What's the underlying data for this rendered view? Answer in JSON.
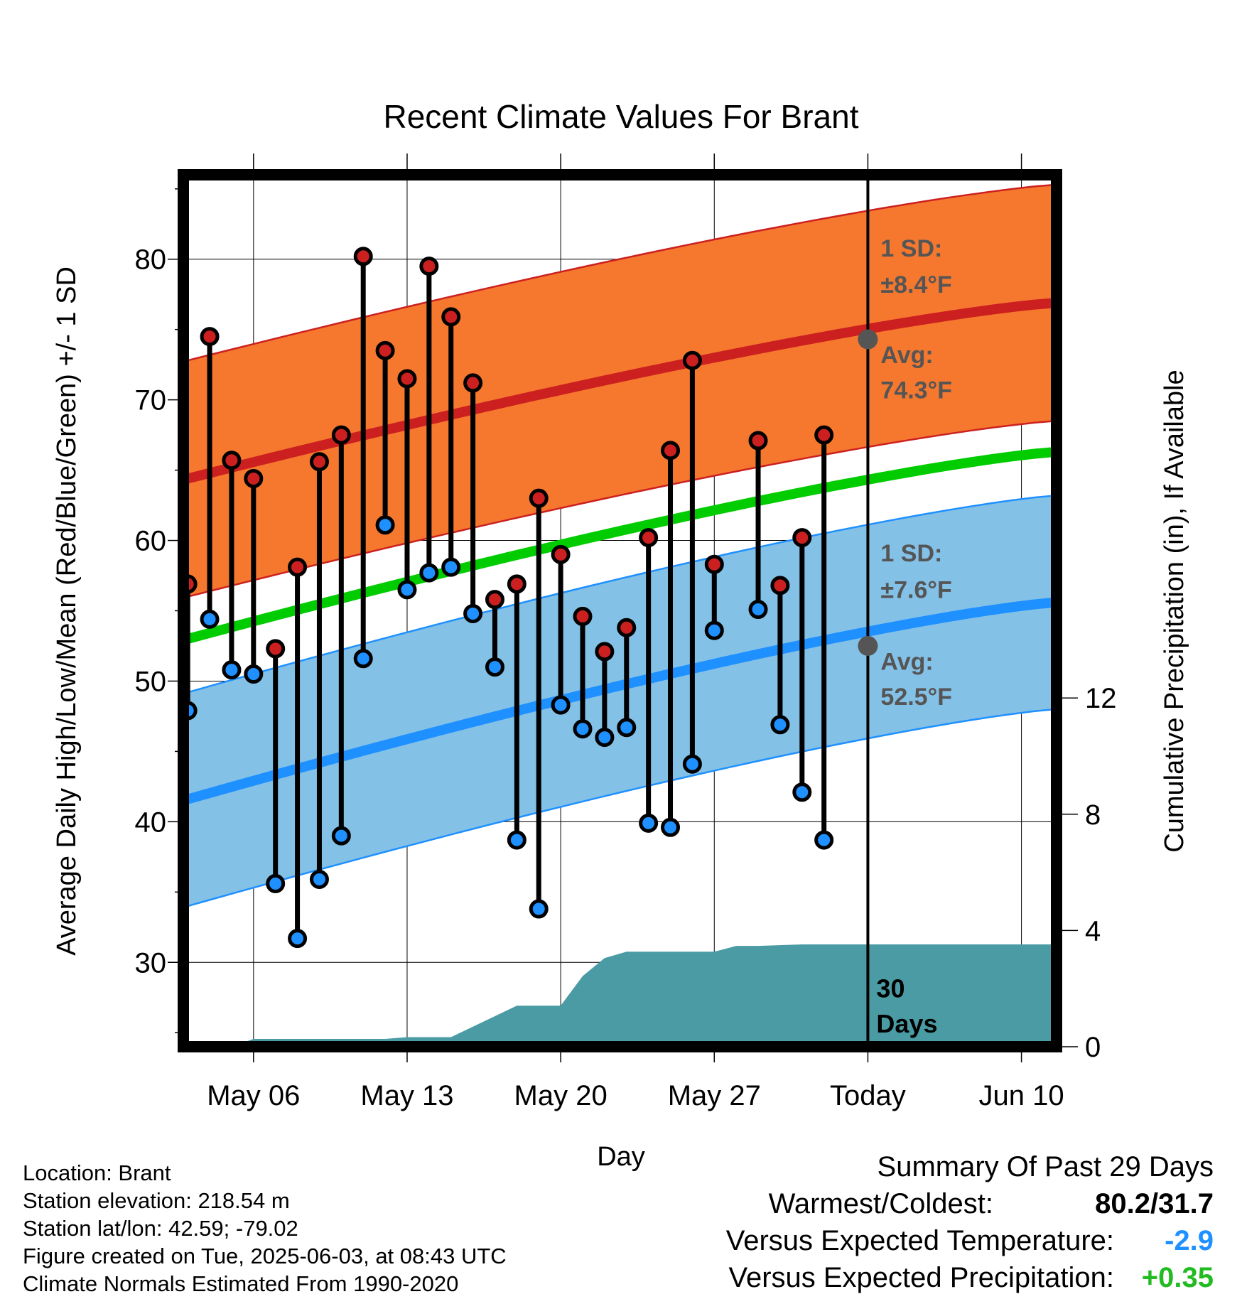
{
  "chart_data": {
    "type": "line",
    "title": "Recent Climate Values For Brant",
    "xlabel": "Day",
    "ylabel": "Average Daily High/Low/Mean (Red/Blue/Green) +/- 1 SD",
    "y2label": "Cumulative Precipitation (in), If Available",
    "ylim": [
      24,
      86
    ],
    "y2lim": [
      0,
      30
    ],
    "yticks": [
      30,
      40,
      50,
      60,
      70,
      80
    ],
    "y2ticks": [
      0,
      4,
      8,
      12
    ],
    "x_range_days": [
      "May 03",
      "Jun 12"
    ],
    "xticks": [
      {
        "day": 6,
        "label": "May 06"
      },
      {
        "day": 13,
        "label": "May 13"
      },
      {
        "day": 20,
        "label": "May 20"
      },
      {
        "day": 27,
        "label": "May 27"
      },
      {
        "day": 34,
        "label": "Today"
      },
      {
        "day": 41,
        "label": "Jun 10"
      }
    ],
    "grid": true,
    "x_days": [
      3,
      4,
      5,
      6,
      7,
      8,
      9,
      10,
      11,
      12,
      13,
      14,
      15,
      16,
      17,
      18,
      19,
      20,
      21,
      22,
      23,
      24,
      25,
      26,
      27,
      28,
      29,
      30,
      31,
      32,
      33
    ],
    "series": [
      {
        "name": "High",
        "color": "#cc2020",
        "values": [
          56.9,
          74.5,
          65.7,
          64.4,
          52.3,
          58.1,
          65.6,
          67.5,
          80.2,
          73.5,
          71.5,
          79.5,
          75.9,
          71.2,
          55.8,
          56.9,
          63.0,
          59.0,
          54.6,
          52.1,
          53.8,
          60.2,
          66.4,
          72.8,
          58.3,
          null,
          67.1,
          56.8,
          60.2,
          67.5,
          null
        ]
      },
      {
        "name": "Low",
        "color": "#1e90ff",
        "values": [
          47.9,
          54.4,
          50.8,
          50.5,
          35.6,
          31.7,
          35.9,
          39.0,
          51.6,
          61.1,
          56.5,
          57.7,
          58.1,
          54.8,
          51.0,
          38.7,
          33.8,
          48.3,
          46.6,
          46.0,
          46.7,
          39.9,
          39.6,
          44.1,
          53.6,
          null,
          55.1,
          46.9,
          42.1,
          38.7,
          null
        ]
      }
    ],
    "normals": {
      "high_avg": {
        "start": 64.4,
        "end": 76.9,
        "color": "#cc2020"
      },
      "high_sd": 8.4,
      "low_avg": {
        "start": 41.6,
        "end": 55.6,
        "color": "#1e90ff"
      },
      "low_sd": 7.6,
      "mean_avg": {
        "start": 53.0,
        "end": 66.3,
        "color": "#00cc00"
      }
    },
    "precip_cumulative": [
      {
        "day": 3,
        "value": 0.0
      },
      {
        "day": 5,
        "value": 0.0
      },
      {
        "day": 6,
        "value": 0.27
      },
      {
        "day": 12,
        "value": 0.27
      },
      {
        "day": 13,
        "value": 0.33
      },
      {
        "day": 15,
        "value": 0.33
      },
      {
        "day": 18,
        "value": 1.41
      },
      {
        "day": 20,
        "value": 1.41
      },
      {
        "day": 21,
        "value": 2.43
      },
      {
        "day": 22,
        "value": 3.05
      },
      {
        "day": 23,
        "value": 3.27
      },
      {
        "day": 27,
        "value": 3.27
      },
      {
        "day": 28,
        "value": 3.47
      },
      {
        "day": 29,
        "value": 3.47
      },
      {
        "day": 31,
        "value": 3.52
      },
      {
        "day": 33,
        "value": 3.52
      },
      {
        "day": 43,
        "value": 3.52
      }
    ],
    "precip_color": "#4a9ba3",
    "high_band_color": "#f5782e",
    "low_band_color": "#84c1e7",
    "today_day": 34,
    "today_high_label": {
      "line1": "1 SD:",
      "line2": "±8.4°F",
      "line3": "Avg:",
      "line4": "74.3°F",
      "avg": 74.3
    },
    "today_low_label": {
      "line1": "1 SD:",
      "line2": "±7.6°F",
      "line3": "Avg:",
      "line4": "52.5°F",
      "avg": 52.5
    },
    "days_label": {
      "line1": "30",
      "line2": "Days"
    }
  },
  "footer": {
    "location": "Location: Brant",
    "elevation": "Station elevation: 218.54 m",
    "latlon": "Station lat/lon: 42.59; -79.02",
    "created": "Figure created on Tue, 2025-06-03, at 08:43 UTC",
    "normals": "Climate Normals Estimated From 1990-2020"
  },
  "summary": {
    "heading": "Summary Of Past 29 Days",
    "warmest_label": "Warmest/Coldest:",
    "warmest_value": "80.2/31.7",
    "temp_label": "Versus Expected Temperature:",
    "temp_value": "-2.9",
    "temp_color": "#1e90ff",
    "precip_label": "Versus Expected Precipitation:",
    "precip_value": "+0.35",
    "precip_color": "#22bb22"
  }
}
